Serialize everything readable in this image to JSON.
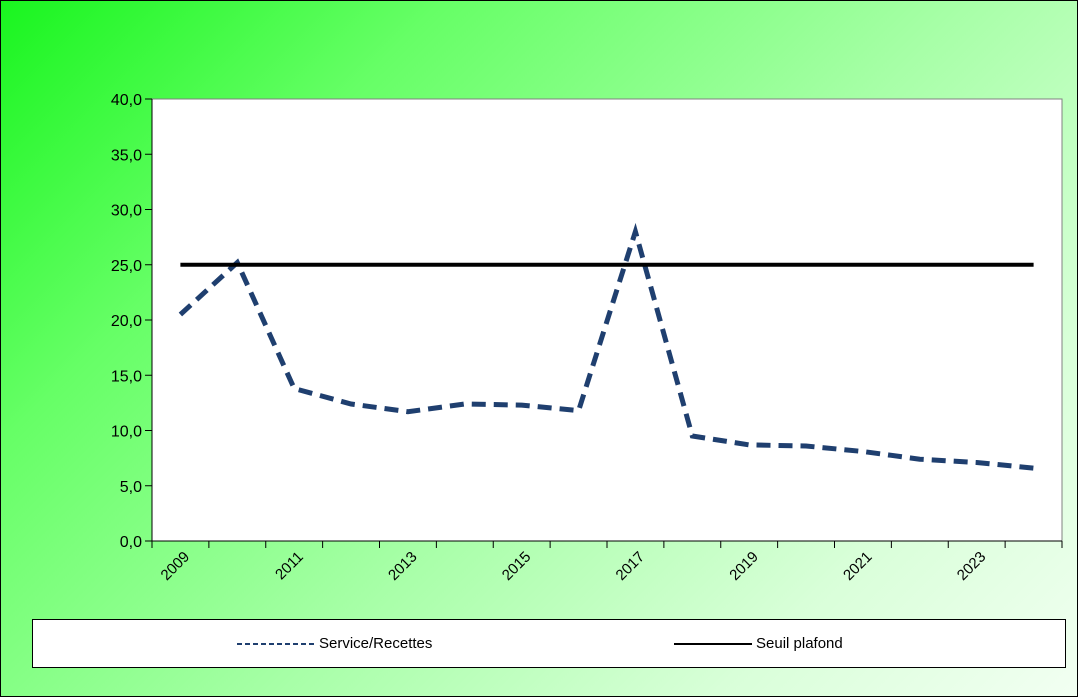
{
  "chart_data": {
    "type": "line",
    "title": "",
    "xlabel": "",
    "ylabel": "",
    "x": [
      2009,
      2010,
      2011,
      2012,
      2013,
      2014,
      2015,
      2016,
      2017,
      2018,
      2019,
      2020,
      2021,
      2022,
      2023,
      2024
    ],
    "x_tick_labels": [
      "2009",
      "2011",
      "2013",
      "2015",
      "2017",
      "2019",
      "2021",
      "2023"
    ],
    "y_tick_labels": [
      "0,0",
      "5,0",
      "10,0",
      "15,0",
      "20,0",
      "25,0",
      "30,0",
      "35,0",
      "40,0"
    ],
    "ylim": [
      0,
      40
    ],
    "grid": false,
    "legend_position": "bottom",
    "series": [
      {
        "name": "Service/Recettes",
        "color": "#1f3f6f",
        "style": "dashed",
        "values": [
          20.5,
          25.2,
          13.8,
          12.4,
          11.7,
          12.4,
          12.3,
          11.8,
          28.0,
          9.5,
          8.7,
          8.6,
          8.1,
          7.4,
          7.1,
          6.6
        ]
      },
      {
        "name": "Seuil plafond",
        "color": "#000000",
        "style": "solid",
        "values": [
          25,
          25,
          25,
          25,
          25,
          25,
          25,
          25,
          25,
          25,
          25,
          25,
          25,
          25,
          25,
          25
        ]
      }
    ]
  },
  "legend": {
    "items": [
      {
        "label": "Service/Recettes",
        "color": "#1f3f6f",
        "style": "dashed"
      },
      {
        "label": "Seuil plafond",
        "color": "#000000",
        "style": "solid"
      }
    ]
  }
}
